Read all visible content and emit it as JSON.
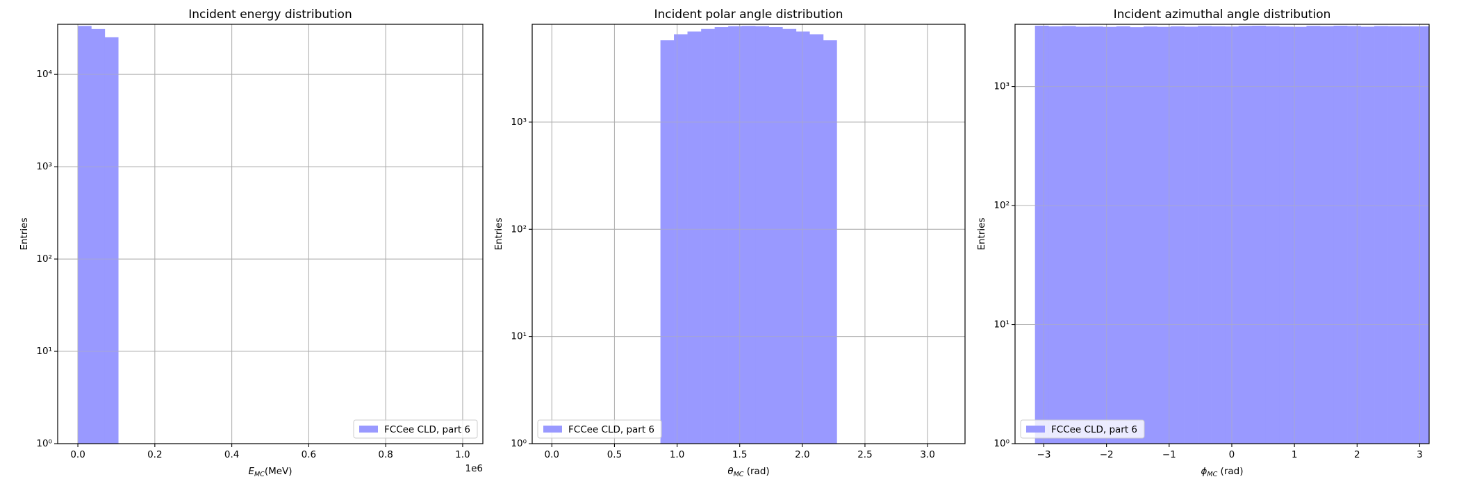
{
  "chart_data": [
    {
      "type": "histogram",
      "title": "Incident energy distribution",
      "xlabel": {
        "symbol": "E",
        "sub": "MC",
        "unit": "(MeV)"
      },
      "ylabel": "Entries",
      "x_offset_label": "1e6",
      "bins": [
        0,
        35000,
        70000,
        105000
      ],
      "series": [
        {
          "name": "FCCee CLD, part 6",
          "color": "#9999ff",
          "values": [
            33500,
            31000,
            25300
          ]
        }
      ],
      "xlim": [
        -52500,
        1052500
      ],
      "ylim": [
        1,
        34900
      ],
      "xticks": [
        {
          "value": 0,
          "label": "0.0"
        },
        {
          "value": 200000,
          "label": "0.2"
        },
        {
          "value": 400000,
          "label": "0.4"
        },
        {
          "value": 600000,
          "label": "0.6"
        },
        {
          "value": 800000,
          "label": "0.8"
        },
        {
          "value": 1000000,
          "label": "1.0"
        }
      ],
      "yticks": [
        {
          "value": 1,
          "label": "10⁰"
        },
        {
          "value": 10,
          "label": "10¹"
        },
        {
          "value": 100,
          "label": "10²"
        },
        {
          "value": 1000,
          "label": "10³"
        },
        {
          "value": 10000,
          "label": "10⁴"
        }
      ],
      "log_y": true,
      "grid": true,
      "legend": "lower right"
    },
    {
      "type": "histogram",
      "title": "Incident polar angle distribution",
      "xlabel": {
        "symbol": "θ",
        "sub": "MC",
        "unit": " (rad)"
      },
      "ylabel": "Entries",
      "bins": [
        0.867,
        0.975,
        1.083,
        1.192,
        1.3,
        1.408,
        1.517,
        1.625,
        1.733,
        1.842,
        1.95,
        2.058,
        2.167,
        2.275
      ],
      "series": [
        {
          "name": "FCCee CLD, part 6",
          "color": "#9999ff",
          "values": [
            5800,
            6600,
            7000,
            7400,
            7700,
            7850,
            7900,
            7850,
            7700,
            7400,
            7000,
            6600,
            5800
          ]
        }
      ],
      "xlim": [
        -0.157,
        3.299
      ],
      "ylim": [
        1,
        8180
      ],
      "xticks": [
        {
          "value": 0,
          "label": "0.0"
        },
        {
          "value": 0.5,
          "label": "0.5"
        },
        {
          "value": 1,
          "label": "1.0"
        },
        {
          "value": 1.5,
          "label": "1.5"
        },
        {
          "value": 2,
          "label": "2.0"
        },
        {
          "value": 2.5,
          "label": "2.5"
        },
        {
          "value": 3,
          "label": "3.0"
        }
      ],
      "yticks": [
        {
          "value": 1,
          "label": "10⁰"
        },
        {
          "value": 10,
          "label": "10¹"
        },
        {
          "value": 100,
          "label": "10²"
        },
        {
          "value": 1000,
          "label": "10³"
        }
      ],
      "log_y": true,
      "grid": true,
      "legend": "lower left"
    },
    {
      "type": "histogram",
      "title": "Incident azimuthal angle distribution",
      "xlabel": {
        "symbol": "ϕ",
        "sub": "MC",
        "unit": " (rad)"
      },
      "ylabel": "Entries",
      "bins": [
        -3.142,
        -2.925,
        -2.708,
        -2.492,
        -2.275,
        -2.058,
        -1.842,
        -1.625,
        -1.408,
        -1.192,
        -0.975,
        -0.758,
        -0.542,
        -0.325,
        -0.108,
        0.108,
        0.325,
        0.542,
        0.758,
        0.975,
        1.192,
        1.408,
        1.625,
        1.842,
        2.058,
        2.275,
        2.492,
        2.708,
        2.925,
        3.142
      ],
      "series": [
        {
          "name": "FCCee CLD, part 6",
          "color": "#9999ff",
          "values": [
            3240,
            3200,
            3220,
            3180,
            3190,
            3170,
            3200,
            3150,
            3190,
            3170,
            3200,
            3180,
            3220,
            3200,
            3190,
            3230,
            3240,
            3210,
            3180,
            3170,
            3230,
            3210,
            3240,
            3220,
            3180,
            3220,
            3210,
            3200,
            3200
          ]
        }
      ],
      "xlim": [
        -3.46,
        3.15
      ],
      "ylim": [
        1,
        3330
      ],
      "xticks": [
        {
          "value": -3,
          "label": "−3"
        },
        {
          "value": -2,
          "label": "−2"
        },
        {
          "value": -1,
          "label": "−1"
        },
        {
          "value": 0,
          "label": "0"
        },
        {
          "value": 1,
          "label": "1"
        },
        {
          "value": 2,
          "label": "2"
        },
        {
          "value": 3,
          "label": "3"
        }
      ],
      "yticks": [
        {
          "value": 1,
          "label": "10⁰"
        },
        {
          "value": 10,
          "label": "10¹"
        },
        {
          "value": 100,
          "label": "10²"
        },
        {
          "value": 1000,
          "label": "10³"
        }
      ],
      "log_y": true,
      "grid": true,
      "legend": "lower left"
    }
  ]
}
